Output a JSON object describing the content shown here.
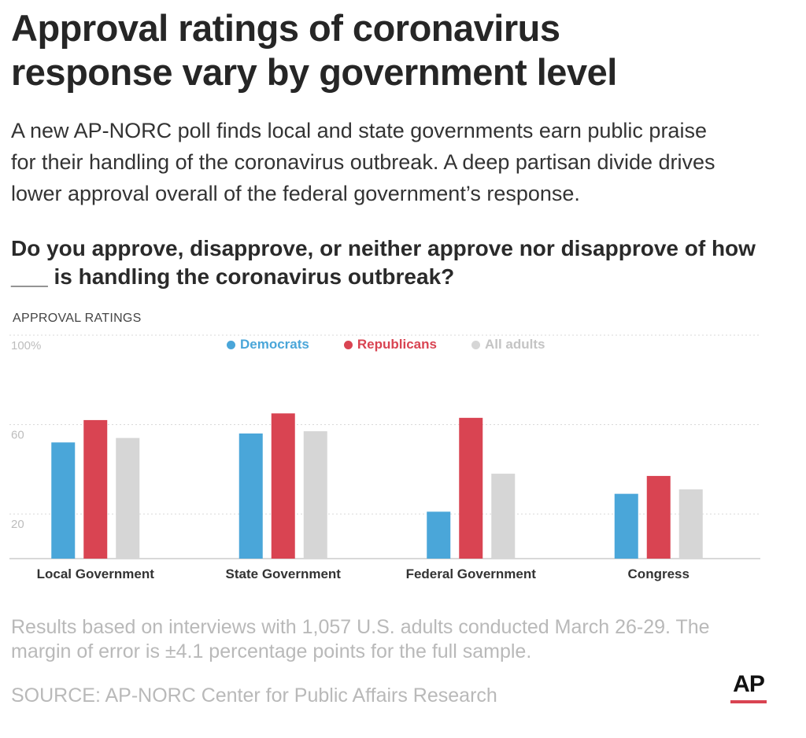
{
  "title_lines": [
    "Approval ratings of coronavirus",
    "response vary by government level"
  ],
  "subtitle_lines": [
    "A new AP-NORC poll finds local and state governments earn public praise",
    "for their handling of the coronavirus outbreak. A deep partisan divide drives",
    "lower approval overall of the federal government’s response."
  ],
  "question_lines": [
    "Do you approve, disapprove, or neither approve nor disapprove of how",
    "___ is handling the coronavirus outbreak?"
  ],
  "chart_label": "APPROVAL RATINGS",
  "note_lines": [
    "Results based on interviews with 1,057 U.S. adults conducted March 26-29. The",
    "margin of error is ±4.1 percentage points for the full sample."
  ],
  "source": "SOURCE: AP-NORC Center for Public Affairs Research",
  "logo_text": "AP",
  "colors": {
    "democrats": "#4aa6d9",
    "republicans": "#d94452",
    "all_adults": "#d6d6d6",
    "grid": "#d8d8d8",
    "axis": "#cccccc"
  },
  "chart_data": {
    "type": "bar",
    "title": "APPROVAL RATINGS",
    "categories": [
      "Local Government",
      "State Government",
      "Federal Government",
      "Congress"
    ],
    "series": [
      {
        "name": "Democrats",
        "color": "#4aa6d9",
        "values": [
          52,
          56,
          21,
          29
        ]
      },
      {
        "name": "Republicans",
        "color": "#d94452",
        "values": [
          62,
          65,
          63,
          37
        ]
      },
      {
        "name": "All adults",
        "color": "#d6d6d6",
        "values": [
          54,
          57,
          38,
          31
        ]
      }
    ],
    "ylim": [
      0,
      100
    ],
    "yticks": [
      "100%",
      "60",
      "20"
    ],
    "ytick_values": [
      100,
      60,
      20
    ],
    "grid": true,
    "legend_position": "top-center"
  }
}
